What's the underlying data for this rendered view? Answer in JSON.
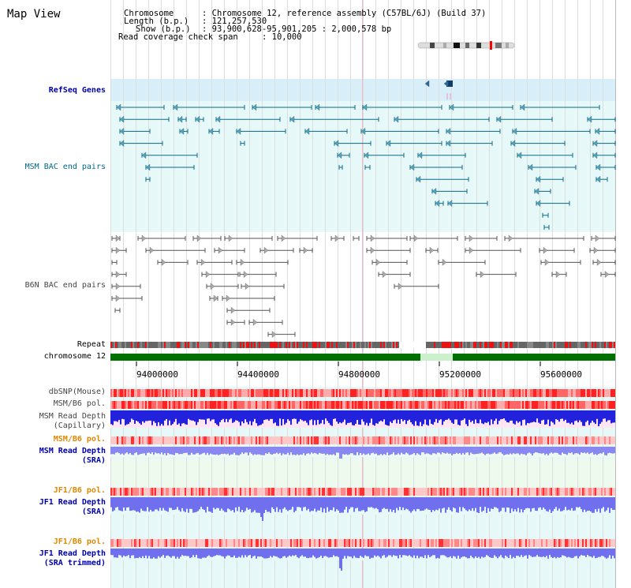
{
  "title": "Map View",
  "header": {
    "chromosome_key": "Chromosome",
    "chromosome_val": ": Chromosome 12, reference assembly (C57BL/6J) (Build 37)",
    "length_key": "Length (b.p.)",
    "length_val": ": 121,257,530",
    "show_key": "Show (b.p.)",
    "show_val": ": 93,900,628-95,901,205 : 2,000,578 bp",
    "coverage_key": "Read coverage check span",
    "coverage_val": ": 10,000"
  },
  "tracks": {
    "refseq": "RefSeq Genes",
    "msm_bac": "MSM BAC end pairs",
    "b6n_bac": "B6N BAC end pairs",
    "repeat": "Repeat",
    "chromosome": "chromosome 12",
    "dbsnp": "dbSNP(Mouse)",
    "msm_b6_pol_1": "MSM/B6 pol.",
    "msm_depth_cap_1": "MSM Read Depth",
    "msm_depth_cap_2": "(Capillary)",
    "msm_b6_pol_2": "MSM/B6 pol.",
    "msm_depth_sra_1": "MSM Read Depth",
    "msm_depth_sra_2": "(SRA)",
    "jf1_b6_pol_1": "JF1/B6 pol.",
    "jf1_depth_sra_1": "JF1 Read Depth",
    "jf1_depth_sra_2": "(SRA)",
    "jf1_b6_pol_2": "JF1/B6 pol.",
    "jf1_depth_trim_1": "JF1 Read Depth",
    "jf1_depth_trim_2": "(SRA trimmed)"
  },
  "axis": {
    "ticks": [
      "94000000",
      "94400000",
      "94800000",
      "95200000",
      "95600000"
    ]
  },
  "colors": {
    "accent_blue": "#0000aa",
    "teal": "#006888",
    "orange": "#dd8800",
    "chromosome_green": "#007000",
    "snp_red": "#ff0000",
    "depth_blue": "#0000ff"
  }
}
